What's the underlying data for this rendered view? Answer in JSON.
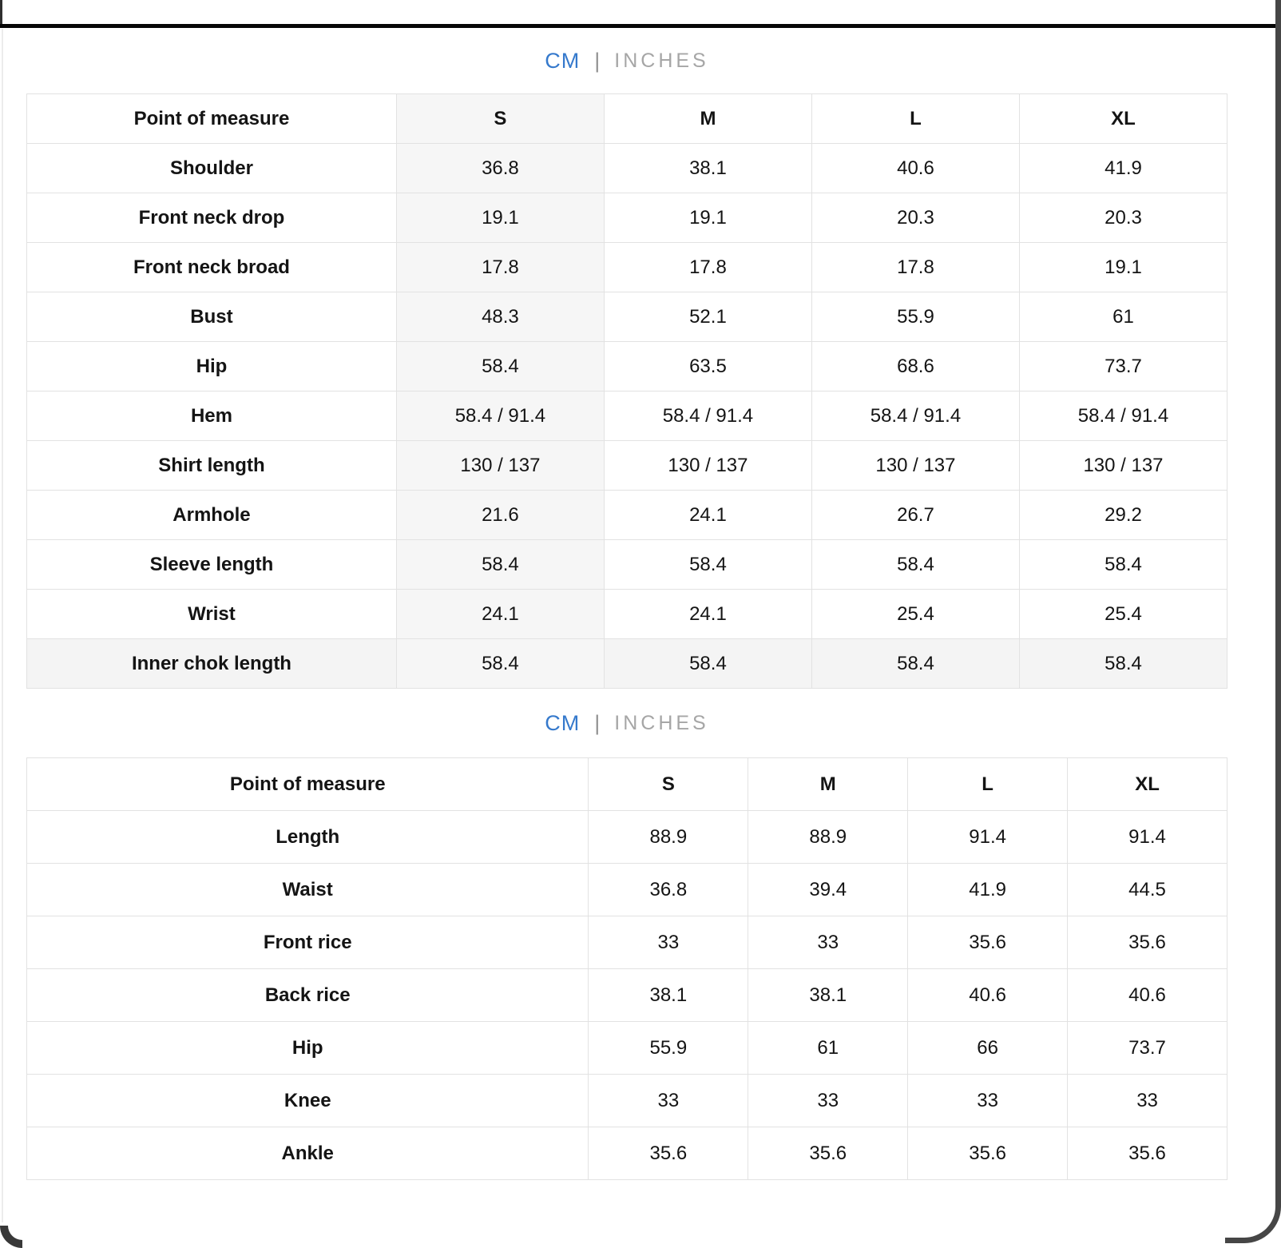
{
  "colors": {
    "accent_blue": "#3579cc",
    "inactive_gray": "#a6a6a6",
    "grid_border": "#e2e2e2",
    "shade": "#f6f6f6"
  },
  "unit_toggle": {
    "cm": "CM",
    "divider": "|",
    "inches": "INCHES"
  },
  "table1": {
    "headers": [
      "Point of measure",
      "S",
      "M",
      "L",
      "XL"
    ],
    "rows": [
      {
        "label": "Shoulder",
        "values": [
          "36.8",
          "38.1",
          "40.6",
          "41.9"
        ]
      },
      {
        "label": "Front neck drop",
        "values": [
          "19.1",
          "19.1",
          "20.3",
          "20.3"
        ]
      },
      {
        "label": "Front neck broad",
        "values": [
          "17.8",
          "17.8",
          "17.8",
          "19.1"
        ]
      },
      {
        "label": "Bust",
        "values": [
          "48.3",
          "52.1",
          "55.9",
          "61"
        ]
      },
      {
        "label": "Hip",
        "values": [
          "58.4",
          "63.5",
          "68.6",
          "73.7"
        ]
      },
      {
        "label": "Hem",
        "values": [
          "58.4 / 91.4",
          "58.4 / 91.4",
          "58.4 / 91.4",
          "58.4 / 91.4"
        ]
      },
      {
        "label": "Shirt length",
        "values": [
          "130 / 137",
          "130 / 137",
          "130 / 137",
          "130 / 137"
        ]
      },
      {
        "label": "Armhole",
        "values": [
          "21.6",
          "24.1",
          "26.7",
          "29.2"
        ]
      },
      {
        "label": "Sleeve length",
        "values": [
          "58.4",
          "58.4",
          "58.4",
          "58.4"
        ]
      },
      {
        "label": "Wrist",
        "values": [
          "24.1",
          "24.1",
          "25.4",
          "25.4"
        ]
      },
      {
        "label": "Inner chok length",
        "values": [
          "58.4",
          "58.4",
          "58.4",
          "58.4"
        ],
        "highlight": true
      }
    ]
  },
  "table2": {
    "headers": [
      "Point of measure",
      "S",
      "M",
      "L",
      "XL"
    ],
    "rows": [
      {
        "label": "Length",
        "values": [
          "88.9",
          "88.9",
          "91.4",
          "91.4"
        ]
      },
      {
        "label": "Waist",
        "values": [
          "36.8",
          "39.4",
          "41.9",
          "44.5"
        ]
      },
      {
        "label": "Front rice",
        "values": [
          "33",
          "33",
          "35.6",
          "35.6"
        ]
      },
      {
        "label": "Back rice",
        "values": [
          "38.1",
          "38.1",
          "40.6",
          "40.6"
        ]
      },
      {
        "label": "Hip",
        "values": [
          "55.9",
          "61",
          "66",
          "73.7"
        ]
      },
      {
        "label": "Knee",
        "values": [
          "33",
          "33",
          "33",
          "33"
        ]
      },
      {
        "label": "Ankle",
        "values": [
          "35.6",
          "35.6",
          "35.6",
          "35.6"
        ]
      }
    ]
  }
}
